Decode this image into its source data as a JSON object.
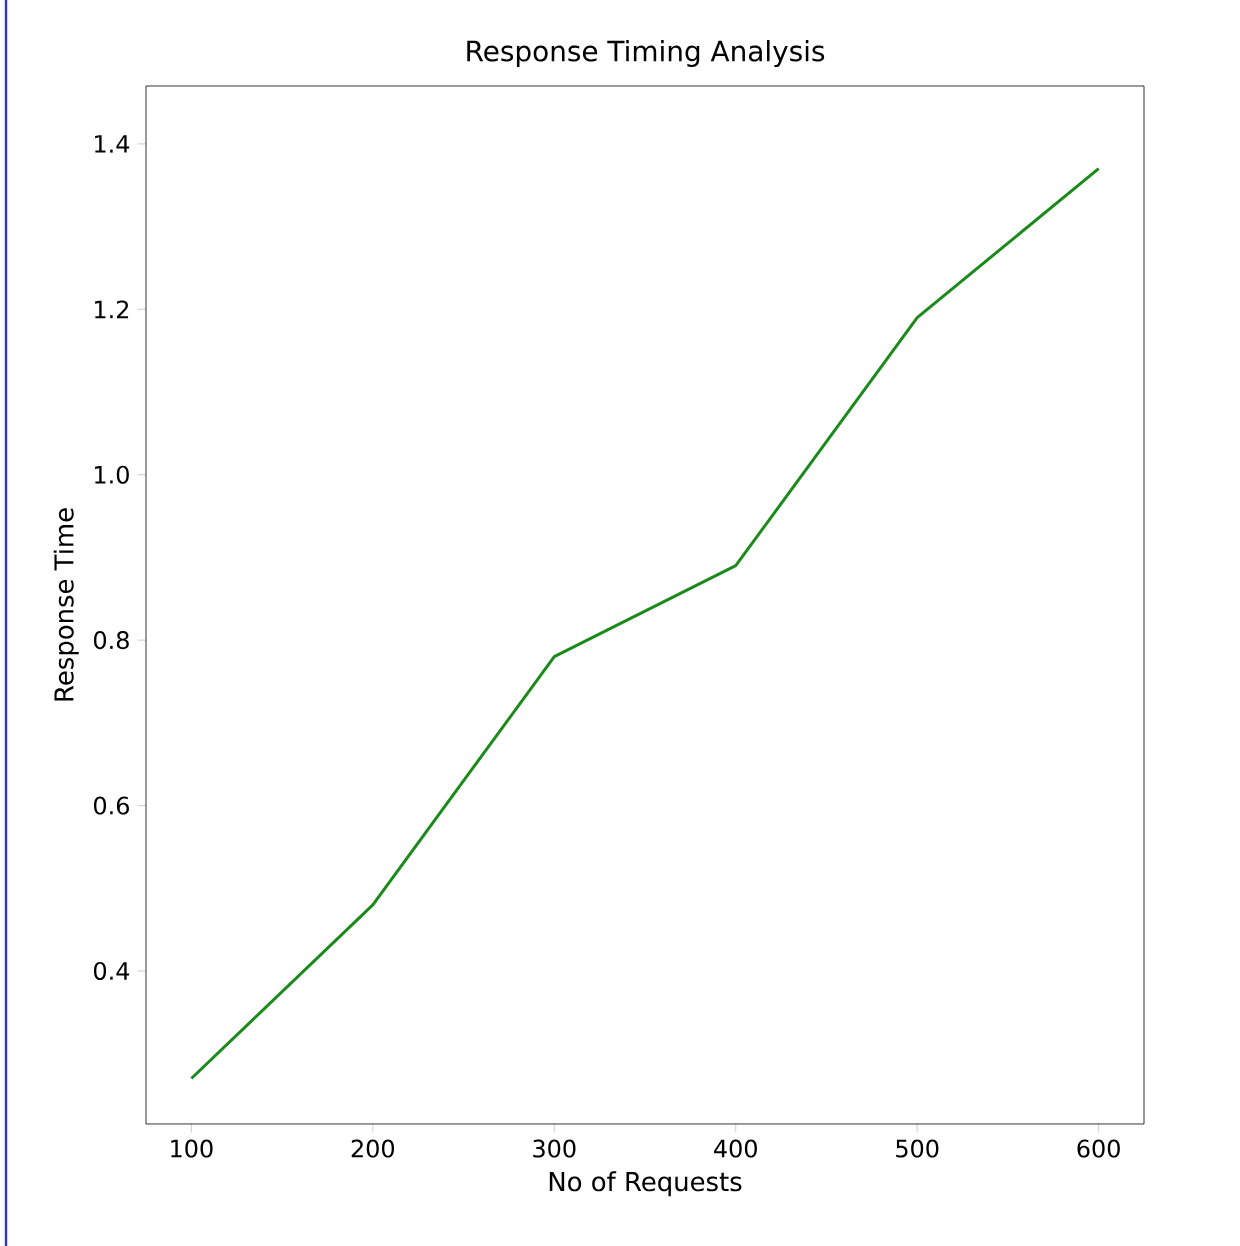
{
  "chart_data": {
    "type": "line",
    "title": "Response Timing Analysis",
    "xlabel": "No of Requests",
    "ylabel": "Response Time",
    "x": [
      100,
      200,
      300,
      400,
      500,
      600
    ],
    "series": [
      {
        "color": "#1a8a1a",
        "values": [
          0.27,
          0.48,
          0.78,
          0.89,
          1.19,
          1.37
        ]
      }
    ],
    "xlim": [
      75,
      625
    ],
    "ylim": [
      0.215,
      1.47
    ],
    "xticks": [
      100,
      200,
      300,
      400,
      500,
      600
    ],
    "yticks": [
      0.4,
      0.6,
      0.8,
      {
        "value": 1,
        "label": "1.0"
      },
      1.2,
      1.4
    ]
  }
}
